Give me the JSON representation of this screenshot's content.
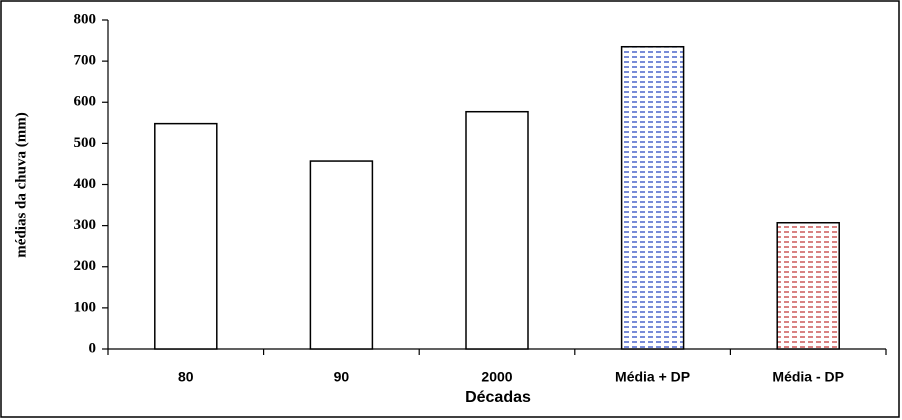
{
  "chart_data": {
    "type": "bar",
    "x_label": "Décadas",
    "y_label": "médias da chuva (mm)",
    "categories": [
      "80",
      "90",
      "2000",
      "Média + DP",
      "Média - DP"
    ],
    "values": [
      548,
      457,
      577,
      735,
      307
    ],
    "colors": [
      "#ffffff",
      "#ffffff",
      "#ffffff",
      "#1f3fbf",
      "#c03030"
    ],
    "ylim": [
      0,
      800
    ],
    "yticks": [
      0,
      100,
      200,
      300,
      400,
      500,
      600,
      700,
      800
    ],
    "grid": false
  }
}
